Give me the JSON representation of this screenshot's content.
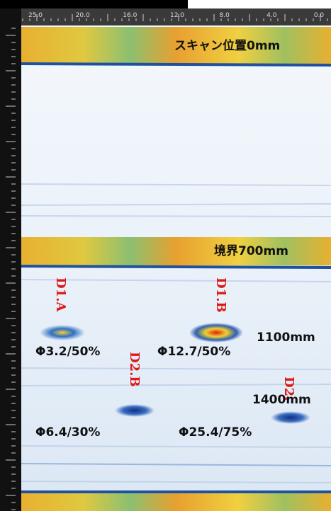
{
  "ruler": {
    "top_labels": [
      "25.0",
      "20.0",
      "16.0",
      "12.0",
      "8.0",
      "4.0",
      "0.0"
    ]
  },
  "annotations": {
    "scan_position": "スキャン位置0mm",
    "boundary": "境界700mm",
    "depth_1": "1100mm",
    "depth_2": "1400mm",
    "defect_labels": [
      "D1.A",
      "D1.B",
      "D2.B",
      "D2."
    ],
    "sizes": [
      "Φ3.2/50%",
      "Φ12.7/50%",
      "Φ6.4/30%",
      "Φ25.4/75%"
    ]
  }
}
